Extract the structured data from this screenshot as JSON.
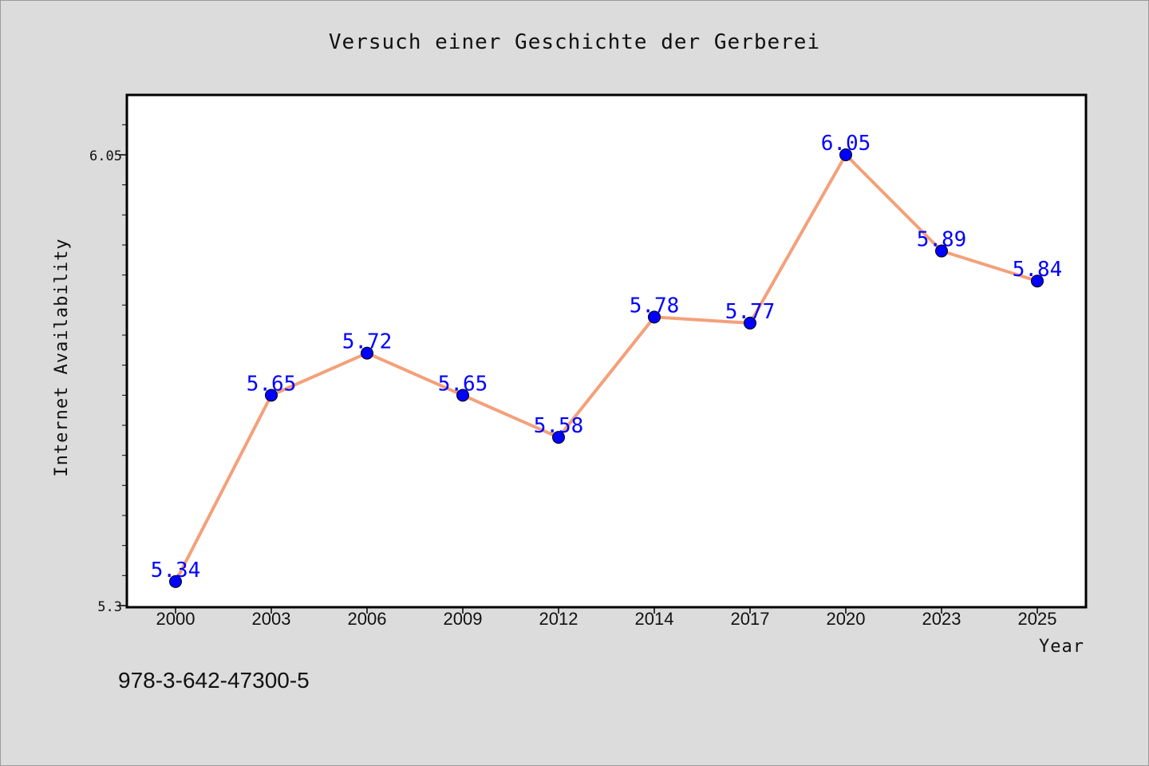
{
  "chart_data": {
    "type": "line",
    "title": "Versuch einer Geschichte der Gerberei",
    "xlabel": "Year",
    "ylabel": "Internet Availability",
    "categories": [
      "2000",
      "2003",
      "2006",
      "2009",
      "2012",
      "2014",
      "2017",
      "2020",
      "2023",
      "2025"
    ],
    "series": [
      {
        "values": [
          5.34,
          5.65,
          5.72,
          5.65,
          5.58,
          5.78,
          5.77,
          6.05,
          5.89,
          5.84
        ],
        "data_labels": [
          "5.34",
          "5.65",
          "5.72",
          "5.65",
          "5.58",
          "5.78",
          "5.77",
          "6.05",
          "5.89",
          "5.84"
        ]
      }
    ],
    "yticks": [
      "5.3",
      "6.05"
    ],
    "ylim": [
      5.3,
      6.15
    ],
    "grid": false,
    "colors": {
      "line": "#f4a07a",
      "marker": "#0000ff",
      "data_label": "#0000ff",
      "plot_background": "#ffffff",
      "figure_background": "#dcdcdc"
    }
  },
  "footer": {
    "isbn": "978-3-642-47300-5"
  }
}
